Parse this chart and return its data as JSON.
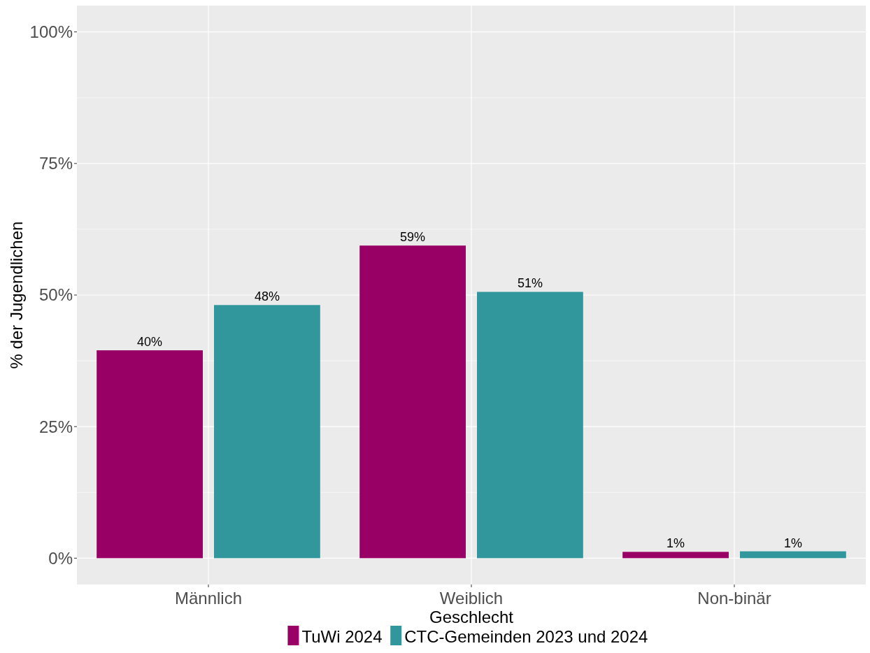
{
  "chart_data": {
    "type": "bar",
    "xlabel": "Geschlecht",
    "ylabel": "% der Jugendlichen",
    "categories": [
      "Männlich",
      "Weiblich",
      "Non-binär"
    ],
    "series": [
      {
        "name": "TuWi 2024",
        "color": "#990066",
        "values": [
          39.5,
          59.4,
          1.2
        ],
        "value_labels": [
          "40%",
          "59%",
          "1%"
        ]
      },
      {
        "name": "CTC-Gemeinden 2023 und 2024",
        "color": "#31979c",
        "values": [
          48.1,
          50.6,
          1.3
        ],
        "value_labels": [
          "48%",
          "51%",
          "1%"
        ]
      }
    ],
    "ylim": [
      -5,
      105
    ],
    "yticks": [
      {
        "value": 0,
        "label": "0%"
      },
      {
        "value": 25,
        "label": "25%"
      },
      {
        "value": 50,
        "label": "50%"
      },
      {
        "value": 75,
        "label": "75%"
      },
      {
        "value": 100,
        "label": "100%"
      }
    ],
    "grid": true,
    "legend": "bottom"
  }
}
